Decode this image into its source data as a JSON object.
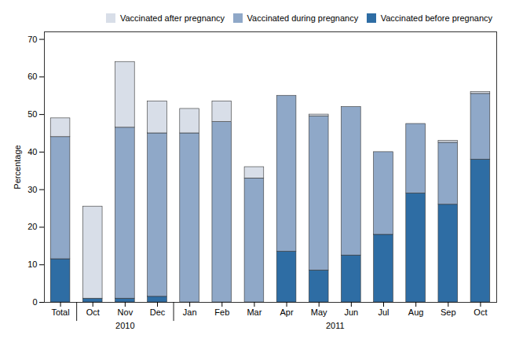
{
  "chart_data": {
    "type": "bar",
    "stacked": true,
    "categories": [
      "Total",
      "Oct",
      "Nov",
      "Dec",
      "Jan",
      "Feb",
      "Mar",
      "Apr",
      "May",
      "Jun",
      "Jul",
      "Aug",
      "Sep",
      "Oct"
    ],
    "series": [
      {
        "name": "Vaccinated before pregnancy",
        "color": "#2E6DA4",
        "values": [
          11.5,
          1.0,
          1.0,
          1.5,
          0.0,
          0.0,
          0.0,
          13.5,
          8.5,
          12.5,
          18.0,
          29.0,
          26.0,
          38.0
        ]
      },
      {
        "name": "Vaccinated during pregnancy",
        "color": "#8FA8C8",
        "values": [
          32.5,
          0.0,
          45.5,
          43.5,
          45.0,
          48.0,
          33.0,
          41.5,
          41.0,
          39.5,
          22.0,
          18.5,
          16.5,
          17.5
        ]
      },
      {
        "name": "Vaccinated after pregnancy",
        "color": "#D8DEE8",
        "values": [
          5.0,
          24.5,
          17.5,
          8.5,
          6.5,
          5.5,
          3.0,
          0.0,
          0.5,
          0.0,
          0.0,
          0.0,
          0.5,
          0.5
        ]
      }
    ],
    "ylabel": "Percentage",
    "ylim": [
      0,
      72
    ],
    "yticks": [
      0,
      10,
      20,
      30,
      40,
      50,
      60,
      70
    ],
    "grid": false,
    "legend": "upper right",
    "annotations": [
      {
        "text": "2010",
        "x": 2.0
      },
      {
        "text": "2011",
        "x": 8.5
      }
    ],
    "dividers_x": [
      0.5,
      3.5
    ]
  }
}
